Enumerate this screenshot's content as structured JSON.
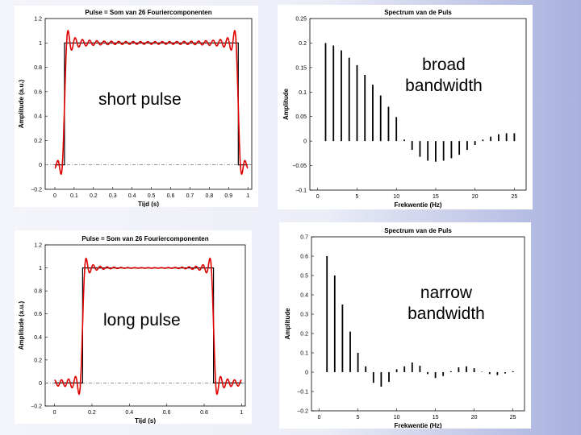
{
  "chart_data": [
    {
      "type": "line",
      "title": "Pulse = Som van 26 Fouriercomponenten",
      "xlabel": "Tijd (s)",
      "ylabel": "Amplitude (a.u.)",
      "xlim": [
        -0.05,
        1.02
      ],
      "ylim": [
        -0.2,
        1.2
      ],
      "xticks": [
        "0",
        "0.1",
        "0.2",
        "0.3",
        "0.4",
        "0.5",
        "0.6",
        "0.7",
        "0.8",
        "0.9",
        "1"
      ],
      "yticks": [
        "−0.2",
        "0",
        "0.2",
        "0.4",
        "0.6",
        "0.8",
        "1",
        "1.2"
      ],
      "pulse": {
        "start": 0.05,
        "end": 0.95
      },
      "harmonics": 26,
      "colors": {
        "ideal": "#000000",
        "fourier": "#e00000"
      },
      "annotation": "short pulse",
      "grid": false
    },
    {
      "type": "bar",
      "title": "Spectrum van de Puls",
      "xlabel": "Frekwentie (Hz)",
      "ylabel": "Amplitude",
      "xlim": [
        -1,
        26.5
      ],
      "ylim": [
        -0.1,
        0.25
      ],
      "xticks": [
        "0",
        "5",
        "10",
        "15",
        "20",
        "25"
      ],
      "yticks": [
        "−0.1",
        "−0.05",
        "0",
        "0.05",
        "0.1",
        "0.15",
        "0.2",
        "0.25"
      ],
      "x": [
        1,
        2,
        3,
        4,
        5,
        6,
        7,
        8,
        9,
        10,
        11,
        12,
        13,
        14,
        15,
        16,
        17,
        18,
        19,
        20,
        21,
        22,
        23,
        24,
        25
      ],
      "values": [
        0.2,
        0.195,
        0.185,
        0.17,
        0.155,
        0.135,
        0.115,
        0.093,
        0.07,
        0.049,
        0.003,
        -0.018,
        -0.032,
        -0.04,
        -0.042,
        -0.04,
        -0.035,
        -0.028,
        -0.018,
        -0.008,
        0.003,
        0.009,
        0.014,
        0.016,
        0.016
      ],
      "annotation": [
        "broad",
        "bandwidth"
      ],
      "grid": false
    },
    {
      "type": "line",
      "title": "Pulse = Som van 26 Fouriercomponenten",
      "xlabel": "Tijd (s)",
      "ylabel": "Amplitude (a.u.)",
      "xlim": [
        -0.05,
        1.02
      ],
      "ylim": [
        -0.2,
        1.2
      ],
      "xticks": [
        "0",
        "0.2",
        "0.4",
        "0.6",
        "0.8",
        "1"
      ],
      "yticks": [
        "−0.2",
        "0",
        "0.2",
        "0.4",
        "0.6",
        "0.8",
        "1",
        "1.2"
      ],
      "pulse": {
        "start": 0.15,
        "end": 0.85
      },
      "harmonics": 26,
      "colors": {
        "ideal": "#000000",
        "fourier": "#e00000"
      },
      "annotation": "long pulse",
      "grid": false
    },
    {
      "type": "bar",
      "title": "Spectrum van de Puls",
      "xlabel": "Frekwentie (Hz)",
      "ylabel": "Amplitude",
      "xlim": [
        -1,
        26.5
      ],
      "ylim": [
        -0.2,
        0.7
      ],
      "xticks": [
        "0",
        "5",
        "10",
        "15",
        "20",
        "25"
      ],
      "yticks": [
        "−0.2",
        "−0.1",
        "0",
        "0.1",
        "0.2",
        "0.3",
        "0.4",
        "0.5",
        "0.6",
        "0.7"
      ],
      "x": [
        1,
        2,
        3,
        4,
        5,
        6,
        7,
        8,
        9,
        10,
        11,
        12,
        13,
        14,
        15,
        16,
        17,
        18,
        19,
        20,
        21,
        22,
        23,
        24,
        25
      ],
      "values": [
        0.6,
        0.5,
        0.35,
        0.21,
        0.1,
        0.03,
        -0.055,
        -0.075,
        -0.05,
        0.015,
        0.03,
        0.05,
        0.033,
        -0.01,
        -0.03,
        -0.02,
        0.005,
        0.025,
        0.03,
        0.02,
        0.002,
        -0.01,
        -0.015,
        -0.007,
        0.005
      ],
      "annotation": [
        "narrow",
        "bandwidth"
      ],
      "grid": false
    }
  ]
}
